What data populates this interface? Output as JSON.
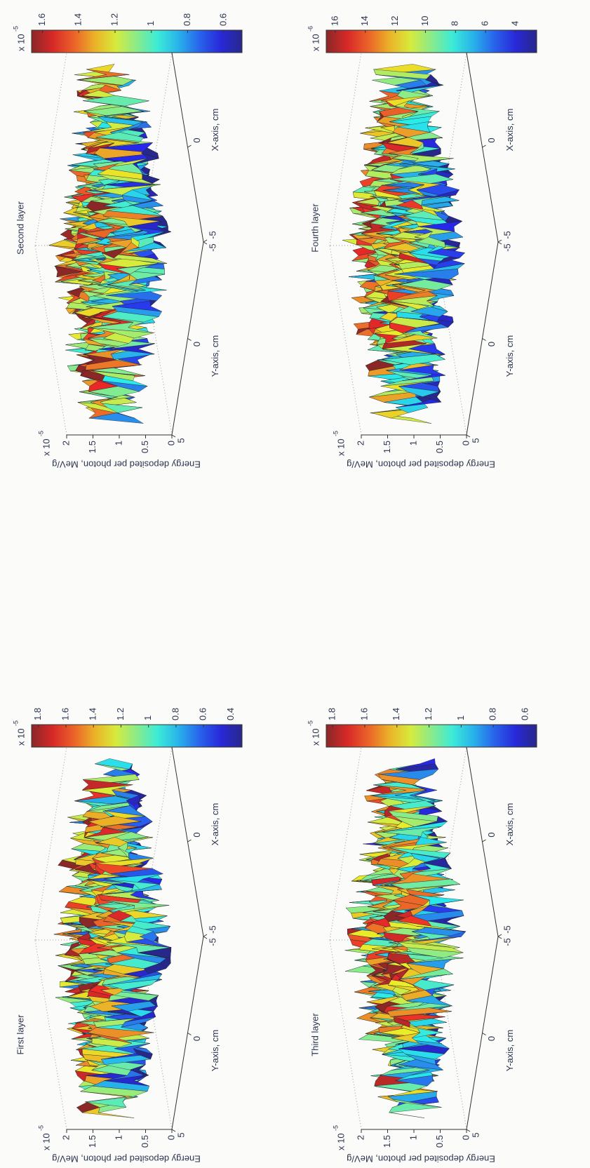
{
  "chart_data": [
    {
      "type": "surface",
      "title": "First layer",
      "xlabel": "X-axis, cm",
      "ylabel": "Y-axis, cm",
      "zlabel": "Energy deposited per photon, MeV/g",
      "xlim": [
        -5,
        5
      ],
      "xticks": [
        -5,
        0,
        5
      ],
      "ylim": [
        -5,
        5
      ],
      "yticks": [
        -5,
        0,
        5
      ],
      "zlim": [
        0,
        2
      ],
      "zticks": [
        0,
        0.5,
        1,
        1.5,
        2
      ],
      "z_exponent": "x 10",
      "z_exponent_power": "-5",
      "colormap": "jet",
      "clim": [
        0.32,
        1.85
      ],
      "cticks": [
        0.4,
        0.6,
        0.8,
        1,
        1.2,
        1.4,
        1.6,
        1.8
      ],
      "c_exponent": "x 10",
      "c_exponent_power": "-5"
    },
    {
      "type": "surface",
      "title": "Second layer",
      "xlabel": "X-axis, cm",
      "ylabel": "Y-axis, cm",
      "zlabel": "Energy deposited per photon, MeV/g",
      "xlim": [
        -5,
        5
      ],
      "xticks": [
        -5,
        0,
        5
      ],
      "ylim": [
        -5,
        5
      ],
      "yticks": [
        -5,
        0,
        5
      ],
      "zlim": [
        0,
        2
      ],
      "zticks": [
        0,
        0.5,
        1,
        1.5,
        2
      ],
      "z_exponent": "x 10",
      "z_exponent_power": "-5",
      "colormap": "jet",
      "clim": [
        0.5,
        1.66
      ],
      "cticks": [
        0.6,
        0.8,
        1,
        1.2,
        1.4,
        1.6
      ],
      "c_exponent": "x 10",
      "c_exponent_power": "-5"
    },
    {
      "type": "surface",
      "title": "Third layer",
      "xlabel": "X-axis, cm",
      "ylabel": "Y-axis, cm",
      "zlabel": "Energy deposited per photon, MeV/g",
      "xlim": [
        -5,
        5
      ],
      "xticks": [
        -5,
        0,
        5
      ],
      "ylim": [
        -5,
        5
      ],
      "yticks": [
        -5,
        0,
        5
      ],
      "zlim": [
        0,
        2
      ],
      "zticks": [
        0,
        0.5,
        1,
        1.5,
        2
      ],
      "z_exponent": "x 10",
      "z_exponent_power": "-5",
      "colormap": "jet",
      "clim": [
        0.53,
        1.84
      ],
      "cticks": [
        0.6,
        0.8,
        1,
        1.2,
        1.4,
        1.6,
        1.8
      ],
      "c_exponent": "x 10",
      "c_exponent_power": "-5"
    },
    {
      "type": "surface",
      "title": "Fourth layer",
      "xlabel": "X-axis, cm",
      "ylabel": "Y-axis, cm",
      "zlabel": "Energy deposited per photon, MeV/g",
      "xlim": [
        -5,
        5
      ],
      "xticks": [
        -5,
        0,
        5
      ],
      "ylim": [
        -5,
        5
      ],
      "yticks": [
        -5,
        0,
        5
      ],
      "zlim": [
        0,
        2
      ],
      "zticks": [
        0,
        0.5,
        1,
        1.5,
        2
      ],
      "z_exponent": "x 10",
      "z_exponent_power": "-5",
      "colormap": "jet",
      "clim": [
        2.6,
        16.6
      ],
      "cticks": [
        4,
        6,
        8,
        10,
        12,
        14,
        16
      ],
      "c_exponent": "x 10",
      "c_exponent_power": "-6"
    }
  ]
}
